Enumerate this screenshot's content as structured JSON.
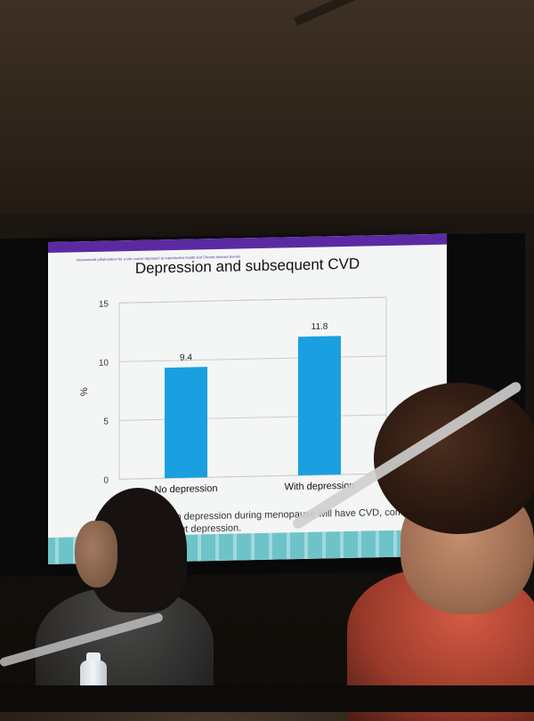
{
  "slide": {
    "header_text": "International collaboration for a Life course Approach to reproductive health and Chronic disease Events",
    "title": "Depression and subsequent CVD",
    "caption_line1": "with depression during menopause will have CVD, comp",
    "caption_line2": "out depression."
  },
  "chart_data": {
    "type": "bar",
    "title": "Depression and subsequent CVD",
    "categories": [
      "No depression",
      "With depression"
    ],
    "values": [
      9.4,
      11.8
    ],
    "ylabel": "%",
    "ylim": [
      0,
      15
    ],
    "yticks": [
      0,
      5,
      10,
      15
    ],
    "grid": true,
    "bar_color": "#1aa0e0",
    "data_labels": [
      "9.4",
      "11.8"
    ]
  }
}
